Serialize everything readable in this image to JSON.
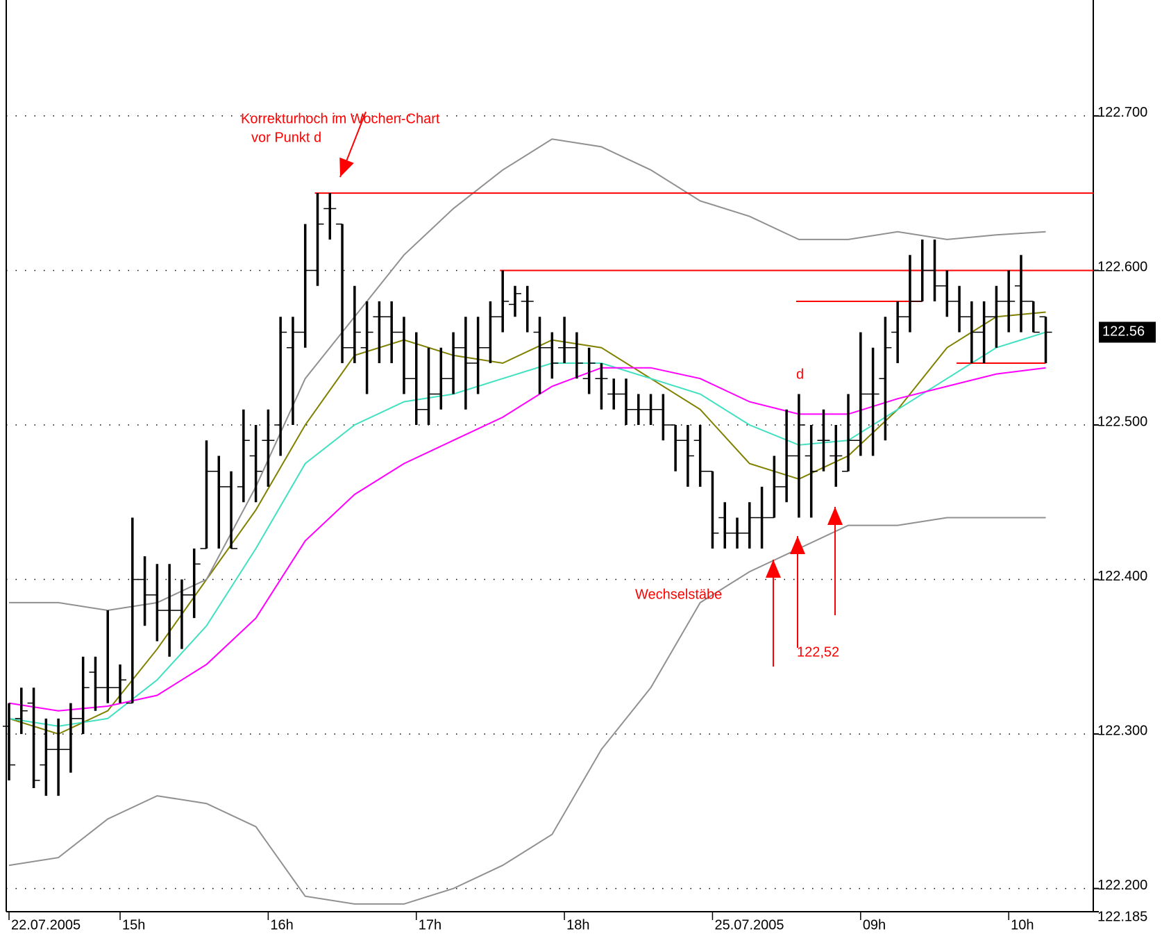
{
  "chart_data": {
    "type": "ohlc",
    "categories": [
      "22.07.2005",
      null,
      null,
      null,
      null,
      null,
      null,
      null,
      null,
      "15h",
      null,
      null,
      null,
      null,
      null,
      null,
      null,
      null,
      null,
      null,
      null,
      "16h",
      null,
      null,
      null,
      null,
      null,
      null,
      null,
      null,
      null,
      null,
      null,
      "17h",
      null,
      null,
      null,
      null,
      null,
      null,
      null,
      null,
      null,
      null,
      null,
      "18h",
      null,
      null,
      null,
      null,
      null,
      null,
      null,
      null,
      null,
      null,
      null,
      "25.07.2005",
      null,
      null,
      null,
      null,
      null,
      null,
      null,
      null,
      null,
      null,
      null,
      "09h",
      null,
      null,
      null,
      null,
      null,
      null,
      null,
      null,
      null,
      null,
      null,
      "10h",
      null,
      null,
      null
    ],
    "open": [
      122.305,
      122.31,
      122.32,
      122.28,
      122.29,
      122.29,
      122.31,
      122.34,
      122.33,
      122.33,
      122.32,
      122.4,
      122.39,
      122.38,
      122.38,
      122.39,
      122.42,
      122.47,
      122.46,
      122.46,
      122.48,
      122.49,
      122.5,
      122.55,
      122.56,
      122.6,
      122.64,
      122.63,
      122.55,
      122.55,
      122.57,
      122.57,
      122.56,
      122.53,
      122.51,
      122.52,
      122.53,
      122.55,
      122.54,
      122.55,
      122.57,
      122.578,
      122.58,
      122.56,
      122.55,
      122.55,
      122.55,
      122.53,
      122.53,
      122.52,
      122.52,
      122.51,
      122.51,
      122.51,
      122.5,
      122.49,
      122.49,
      122.47,
      122.44,
      122.43,
      122.43,
      122.44,
      122.44,
      122.46,
      122.48,
      122.48,
      122.49,
      122.48,
      122.47,
      122.49,
      122.52,
      122.53,
      122.56,
      122.57,
      122.58,
      122.6,
      122.59,
      122.58,
      122.57,
      122.56,
      122.57,
      122.58,
      122.59,
      122.58,
      122.57
    ],
    "high": [
      122.32,
      122.33,
      122.33,
      122.31,
      122.31,
      122.32,
      122.35,
      122.35,
      122.38,
      122.345,
      122.44,
      122.415,
      122.41,
      122.41,
      122.4,
      122.42,
      122.49,
      122.48,
      122.47,
      122.51,
      122.5,
      122.51,
      122.57,
      122.57,
      122.63,
      122.65,
      122.65,
      122.63,
      122.59,
      122.58,
      122.58,
      122.58,
      122.57,
      122.56,
      122.55,
      122.55,
      122.56,
      122.57,
      122.57,
      122.58,
      122.6,
      122.59,
      122.59,
      122.57,
      122.56,
      122.57,
      122.56,
      122.55,
      122.54,
      122.53,
      122.53,
      122.52,
      122.52,
      122.52,
      122.5,
      122.5,
      122.5,
      122.47,
      122.45,
      122.44,
      122.45,
      122.46,
      122.48,
      122.51,
      122.52,
      122.5,
      122.51,
      122.5,
      122.52,
      122.56,
      122.55,
      122.57,
      122.58,
      122.61,
      122.62,
      122.62,
      122.6,
      122.59,
      122.58,
      122.58,
      122.59,
      122.6,
      122.61,
      122.58,
      122.57
    ],
    "low": [
      122.27,
      122.3,
      122.265,
      122.26,
      122.26,
      122.275,
      122.3,
      122.315,
      122.32,
      122.32,
      122.32,
      122.37,
      122.36,
      122.35,
      122.355,
      122.375,
      122.42,
      122.42,
      122.42,
      122.45,
      122.45,
      122.46,
      122.48,
      122.5,
      122.55,
      122.59,
      122.62,
      122.54,
      122.54,
      122.52,
      122.54,
      122.54,
      122.52,
      122.5,
      122.5,
      122.51,
      122.52,
      122.51,
      122.52,
      122.54,
      122.56,
      122.57,
      122.56,
      122.52,
      122.53,
      122.54,
      122.53,
      122.52,
      122.51,
      122.51,
      122.5,
      122.5,
      122.5,
      122.49,
      122.47,
      122.46,
      122.46,
      122.42,
      122.42,
      122.42,
      122.42,
      122.42,
      122.44,
      122.45,
      122.44,
      122.44,
      122.47,
      122.46,
      122.47,
      122.48,
      122.48,
      122.49,
      122.54,
      122.56,
      122.58,
      122.58,
      122.57,
      122.56,
      122.54,
      122.54,
      122.55,
      122.56,
      122.56,
      122.56,
      122.54
    ],
    "close": [
      122.28,
      122.315,
      122.27,
      122.29,
      122.29,
      122.31,
      122.33,
      122.33,
      122.33,
      122.335,
      122.4,
      122.39,
      122.38,
      122.38,
      122.39,
      122.41,
      122.47,
      122.46,
      122.42,
      122.49,
      122.47,
      122.49,
      122.56,
      122.56,
      122.6,
      122.63,
      122.64,
      122.55,
      122.56,
      122.56,
      122.57,
      122.56,
      122.53,
      122.51,
      122.52,
      122.53,
      122.55,
      122.54,
      122.55,
      122.57,
      122.58,
      122.585,
      122.58,
      122.55,
      122.54,
      122.55,
      122.54,
      122.54,
      122.53,
      122.52,
      122.51,
      122.51,
      122.51,
      122.5,
      122.49,
      122.48,
      122.47,
      122.43,
      122.43,
      122.43,
      122.44,
      122.44,
      122.46,
      122.48,
      122.5,
      122.47,
      122.49,
      122.48,
      122.49,
      122.52,
      122.52,
      122.55,
      122.57,
      122.58,
      122.6,
      122.59,
      122.58,
      122.57,
      122.56,
      122.57,
      122.58,
      122.58,
      122.58,
      122.56,
      122.56
    ],
    "bar_color": "#000000",
    "line_x": [
      0,
      4,
      8,
      12,
      16,
      20,
      24,
      28,
      32,
      36,
      40,
      44,
      48,
      52,
      56,
      60,
      64,
      68,
      72,
      76,
      80,
      84
    ],
    "lines": [
      {
        "color": "#808000",
        "values": [
          122.31,
          122.3,
          122.315,
          122.355,
          122.4,
          122.445,
          122.5,
          122.545,
          122.555,
          122.545,
          122.54,
          122.555,
          122.55,
          122.53,
          122.51,
          122.475,
          122.465,
          122.48,
          122.51,
          122.55,
          122.57,
          122.573
        ]
      },
      {
        "color": "#40e0c0",
        "values": [
          122.31,
          122.305,
          122.31,
          122.335,
          122.37,
          122.42,
          122.475,
          122.5,
          122.515,
          122.52,
          122.53,
          122.54,
          122.54,
          122.53,
          122.52,
          122.5,
          122.487,
          122.49,
          122.51,
          122.53,
          122.55,
          122.56
        ]
      },
      {
        "color": "#ff00ff",
        "values": [
          122.32,
          122.315,
          122.318,
          122.325,
          122.345,
          122.375,
          122.425,
          122.455,
          122.475,
          122.49,
          122.505,
          122.525,
          122.537,
          122.537,
          122.53,
          122.515,
          122.507,
          122.507,
          122.517,
          122.525,
          122.533,
          122.537
        ]
      },
      {
        "color": "#909090",
        "values": [
          122.385,
          122.385,
          122.38,
          122.385,
          122.4,
          122.46,
          122.53,
          122.57,
          122.61,
          122.64,
          122.665,
          122.685,
          122.68,
          122.665,
          122.645,
          122.635,
          122.62,
          122.62,
          122.625,
          122.62,
          122.623,
          122.625
        ]
      },
      {
        "color": "#909090",
        "values": [
          122.215,
          122.22,
          122.245,
          122.26,
          122.255,
          122.24,
          122.195,
          122.19,
          122.19,
          122.2,
          122.215,
          122.235,
          122.29,
          122.33,
          122.385,
          122.405,
          122.42,
          122.435,
          122.435,
          122.44,
          122.44,
          122.44
        ]
      }
    ],
    "levels": [
      {
        "value": 122.65,
        "from": 25,
        "to": 90
      },
      {
        "value": 122.6,
        "from": 40,
        "to": 90
      },
      {
        "value": 122.58,
        "from": 64,
        "to": 74
      },
      {
        "value": 122.54,
        "from": 77,
        "to": 84
      }
    ],
    "level_color": "#ff0000",
    "annotations": [
      "Korrekturhoch im Wochen-Chart",
      "vor Punkt d",
      "d",
      "Wechselstäbe",
      "122,52"
    ],
    "annotation_color": "#ff0000",
    "last_price": 122.56,
    "ylim": [
      122.185,
      122.775
    ],
    "yticks": [
      {
        "value": 122.185,
        "label": "122.185"
      },
      {
        "value": 122.2,
        "label": "122.200"
      },
      {
        "value": 122.3,
        "label": "122.300"
      },
      {
        "value": 122.4,
        "label": "122.400"
      },
      {
        "value": 122.5,
        "label": "122.500"
      },
      {
        "value": 122.6,
        "label": "122.600"
      },
      {
        "value": 122.7,
        "label": "122.700"
      }
    ],
    "grid": true
  }
}
